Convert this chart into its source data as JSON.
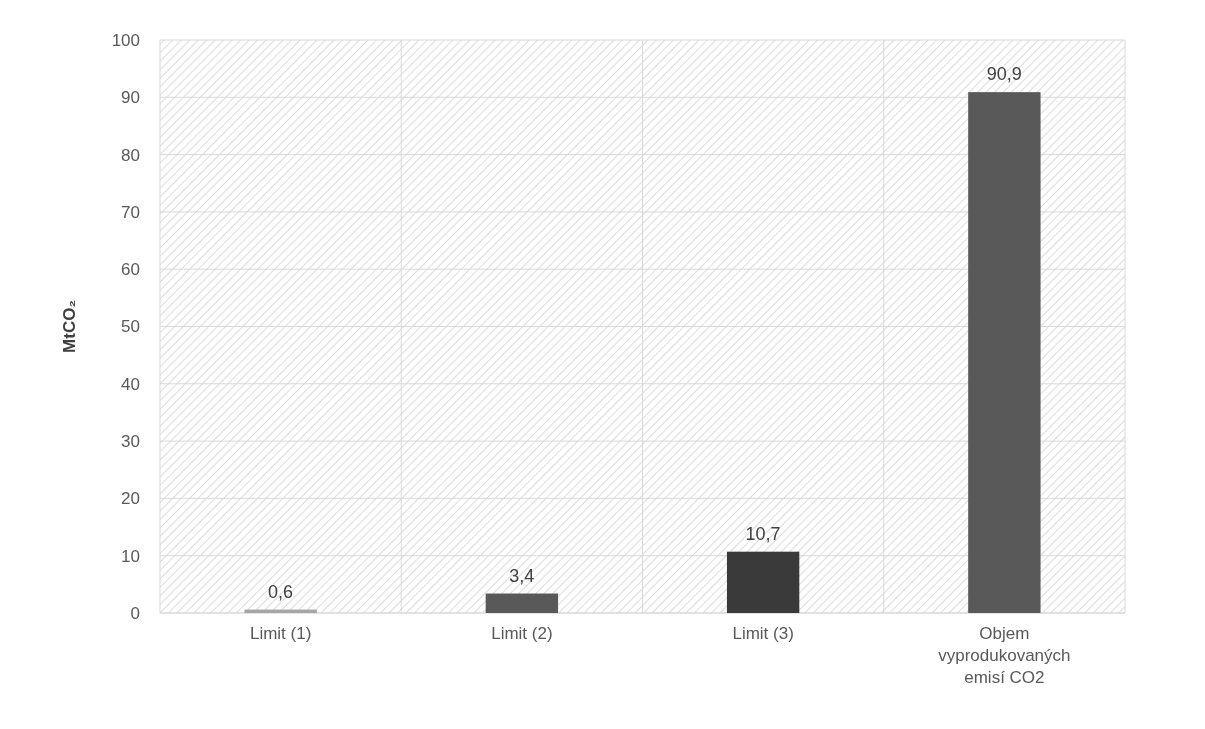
{
  "chart_data": {
    "type": "bar",
    "ylabel": "MtCO₂",
    "categories": [
      "Limit (1)",
      "Limit (2)",
      "Limit (3)",
      "Objem vyprodukovaných emisí CO2"
    ],
    "values": [
      0.6,
      3.4,
      10.7,
      90.9
    ],
    "colors": [
      "#a6a6a6",
      "#595959",
      "#3a3a3a",
      "#595959"
    ],
    "ylim": [
      0,
      100
    ],
    "yticks": [
      0,
      10,
      20,
      30,
      40,
      50,
      60,
      70,
      80,
      90,
      100
    ],
    "grid": true,
    "value_labels": [
      "0,6",
      "3,4",
      "10,7",
      "90,9"
    ]
  }
}
